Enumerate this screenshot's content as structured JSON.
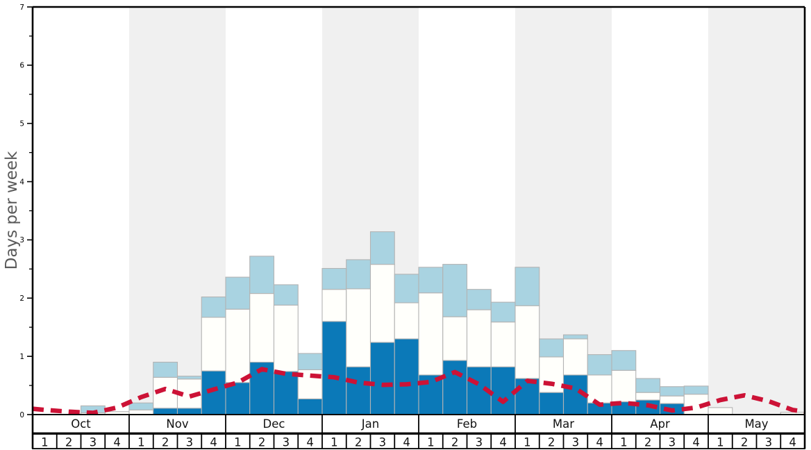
{
  "chart_data": {
    "type": "bar",
    "title": "",
    "ylabel": "Days per week",
    "ylim": [
      0,
      7
    ],
    "yticks": [
      "0",
      "1",
      "2",
      "3",
      "4",
      "5",
      "6",
      "7"
    ],
    "minor_tick_step": 0.5,
    "grid": false,
    "legend_position": "none",
    "months": [
      "Oct",
      "Nov",
      "Dec",
      "Jan",
      "Feb",
      "Mar",
      "Apr",
      "May"
    ],
    "weeks_per_month": [
      "1",
      "2",
      "3",
      "4"
    ],
    "shaded_month_indices": [
      1,
      3,
      5,
      7
    ],
    "categories": [
      "Oct-1",
      "Oct-2",
      "Oct-3",
      "Oct-4",
      "Nov-1",
      "Nov-2",
      "Nov-3",
      "Nov-4",
      "Dec-1",
      "Dec-2",
      "Dec-3",
      "Dec-4",
      "Jan-1",
      "Jan-2",
      "Jan-3",
      "Jan-4",
      "Feb-1",
      "Feb-2",
      "Feb-3",
      "Feb-4",
      "Mar-1",
      "Mar-2",
      "Mar-3",
      "Mar-4",
      "Apr-1",
      "Apr-2",
      "Apr-3",
      "Apr-4",
      "May-1",
      "May-2",
      "May-3",
      "May-4"
    ],
    "series": [
      {
        "name": "dark-blue-days",
        "color": "#0b79b8",
        "values": [
          0,
          0,
          0,
          0,
          0,
          0.11,
          0.11,
          0.75,
          0.55,
          0.9,
          0.74,
          0.27,
          1.6,
          0.82,
          1.24,
          1.3,
          0.68,
          0.93,
          0.82,
          0.82,
          0.62,
          0.38,
          0.68,
          0.2,
          0.22,
          0.25,
          0.19,
          0,
          0,
          0,
          0,
          0
        ]
      },
      {
        "name": "white-days",
        "color": "#fffffb",
        "values": [
          0,
          0,
          0.03,
          0.05,
          0.08,
          0.53,
          0.5,
          0.92,
          1.26,
          1.18,
          1.14,
          0.5,
          0.55,
          1.34,
          1.34,
          0.62,
          1.41,
          0.75,
          0.98,
          0.77,
          1.25,
          0.61,
          0.62,
          0.48,
          0.54,
          0.13,
          0.13,
          0.35,
          0.12,
          0,
          0,
          0.04
        ]
      },
      {
        "name": "light-blue-days",
        "color": "#a9d3e1",
        "values": [
          0,
          0,
          0.12,
          0,
          0.12,
          0.26,
          0.05,
          0.35,
          0.55,
          0.64,
          0.35,
          0.28,
          0.36,
          0.5,
          0.56,
          0.49,
          0.44,
          0.9,
          0.35,
          0.34,
          0.66,
          0.31,
          0.07,
          0.35,
          0.34,
          0.24,
          0.16,
          0.14,
          0,
          0,
          0,
          0
        ]
      }
    ],
    "line": {
      "name": "red-dashed-line",
      "color": "#cc1236",
      "style": "dashed",
      "edge_start": 0.1,
      "edge_end": 0.05,
      "values": [
        0.08,
        0.05,
        0.03,
        0.12,
        0.3,
        0.44,
        0.31,
        0.43,
        0.55,
        0.78,
        0.7,
        0.67,
        0.64,
        0.55,
        0.51,
        0.52,
        0.56,
        0.73,
        0.52,
        0.22,
        0.58,
        0.53,
        0.45,
        0.17,
        0.2,
        0.16,
        0.07,
        0.12,
        0.25,
        0.33,
        0.23,
        0.08
      ]
    },
    "colors": {
      "band": "#f0f0f0",
      "bar_border": "#b3b3b3",
      "frame": "#000000",
      "tick_label": "#000000",
      "axis_label": "#595959",
      "plot_background": "#ffffff"
    }
  }
}
